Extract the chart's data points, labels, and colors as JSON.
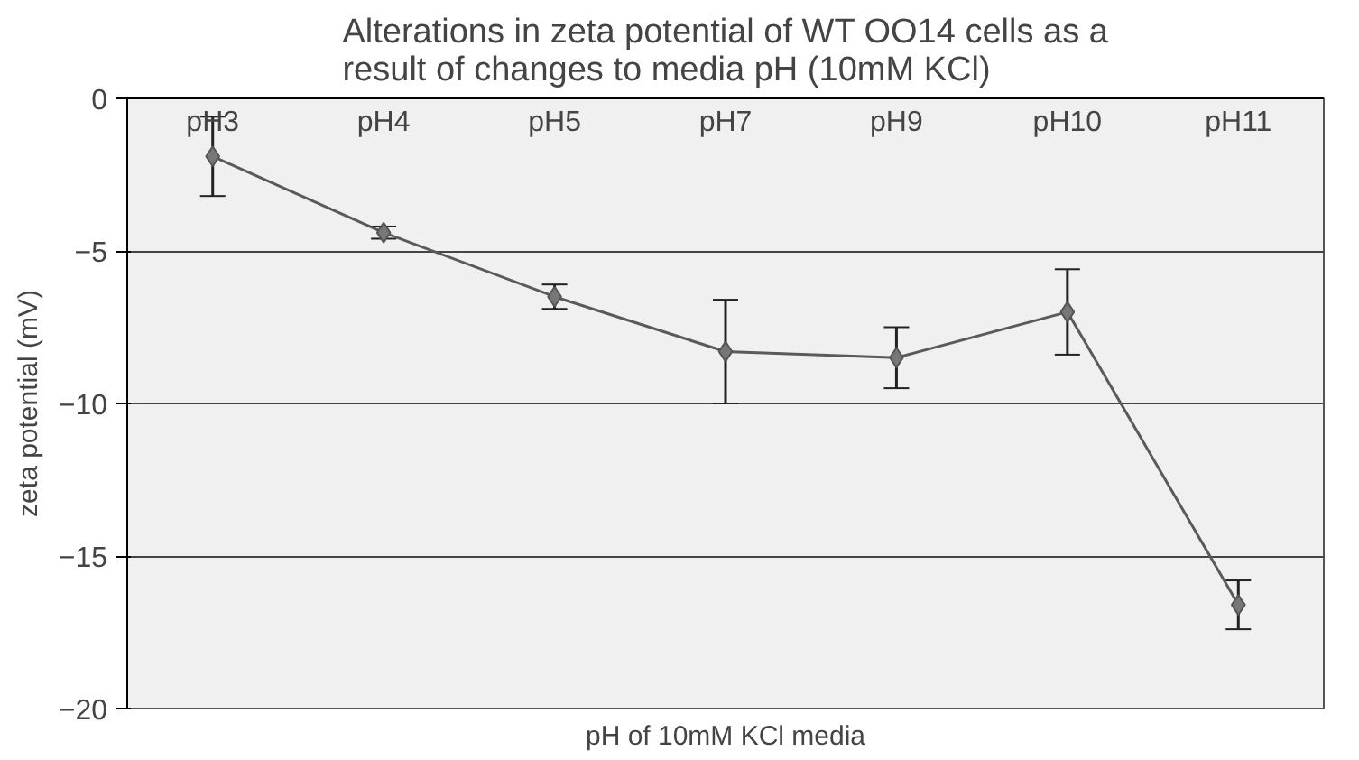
{
  "chart_data": {
    "type": "line",
    "title": "Alterations in zeta potential of WT OO14 cells as a\nresult of changes to media pH (10mM KCl)",
    "xlabel": "pH of 10mM KCl media",
    "ylabel": "zeta potential (mV)",
    "categories": [
      "pH3",
      "pH4",
      "pH5",
      "pH7",
      "pH9",
      "pH10",
      "pH11"
    ],
    "series": [
      {
        "color": "#5a5a5a",
        "values": [
          -1.9,
          -4.4,
          -6.5,
          -8.3,
          -8.5,
          -7.0,
          -16.6
        ],
        "errors": [
          1.3,
          0.2,
          0.4,
          1.7,
          1.0,
          1.4,
          0.8
        ]
      }
    ],
    "ylim": [
      -20,
      0
    ],
    "yticks": [
      -20,
      -15,
      -10,
      -5,
      0
    ],
    "grid": "y",
    "marker": "diamond",
    "line_style": "solid"
  }
}
